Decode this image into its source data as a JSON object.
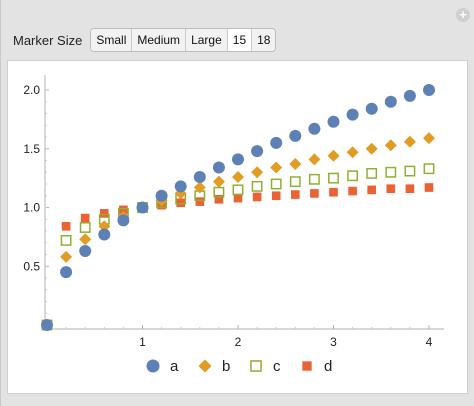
{
  "controls": {
    "label": "Marker Size",
    "options": [
      "Small",
      "Medium",
      "Large",
      "15",
      "18"
    ],
    "selected": "15"
  },
  "chart_data": {
    "type": "scatter",
    "title": "",
    "xlabel": "",
    "ylabel": "",
    "xlim": [
      0,
      4.1
    ],
    "ylim": [
      0,
      2.1
    ],
    "x_ticks": [
      "1",
      "2",
      "3",
      "4"
    ],
    "y_ticks": [
      "0.5",
      "1.0",
      "1.5",
      "2.0"
    ],
    "legend_position": "bottom",
    "series": [
      {
        "name": "a",
        "marker": "circle",
        "color": "#5e81b5",
        "x": [
          0,
          0.2,
          0.4,
          0.6,
          0.8,
          1.0,
          1.2,
          1.4,
          1.6,
          1.8,
          2.0,
          2.2,
          2.4,
          2.6,
          2.8,
          3.0,
          3.2,
          3.4,
          3.6,
          3.8,
          4.0
        ],
        "y": [
          0,
          0.45,
          0.63,
          0.77,
          0.89,
          1.0,
          1.1,
          1.18,
          1.26,
          1.34,
          1.41,
          1.48,
          1.55,
          1.61,
          1.67,
          1.73,
          1.79,
          1.84,
          1.9,
          1.95,
          2.0
        ]
      },
      {
        "name": "b",
        "marker": "diamond",
        "color": "#e19c24",
        "x": [
          0,
          0.2,
          0.4,
          0.6,
          0.8,
          1.0,
          1.2,
          1.4,
          1.6,
          1.8,
          2.0,
          2.2,
          2.4,
          2.6,
          2.8,
          3.0,
          3.2,
          3.4,
          3.6,
          3.8,
          4.0
        ],
        "y": [
          0,
          0.58,
          0.73,
          0.84,
          0.92,
          1.0,
          1.06,
          1.12,
          1.17,
          1.22,
          1.26,
          1.3,
          1.34,
          1.37,
          1.41,
          1.44,
          1.47,
          1.5,
          1.53,
          1.56,
          1.59
        ]
      },
      {
        "name": "c",
        "marker": "open-square",
        "color": "#8fb032",
        "x": [
          0,
          0.2,
          0.4,
          0.6,
          0.8,
          1.0,
          1.2,
          1.4,
          1.6,
          1.8,
          2.0,
          2.2,
          2.4,
          2.6,
          2.8,
          3.0,
          3.2,
          3.4,
          3.6,
          3.8,
          4.0
        ],
        "y": [
          0,
          0.72,
          0.83,
          0.9,
          0.95,
          1.0,
          1.04,
          1.07,
          1.1,
          1.13,
          1.15,
          1.18,
          1.2,
          1.22,
          1.24,
          1.25,
          1.27,
          1.29,
          1.3,
          1.31,
          1.33
        ]
      },
      {
        "name": "d",
        "marker": "square",
        "color": "#eb6235",
        "x": [
          0,
          0.2,
          0.4,
          0.6,
          0.8,
          1.0,
          1.2,
          1.4,
          1.6,
          1.8,
          2.0,
          2.2,
          2.4,
          2.6,
          2.8,
          3.0,
          3.2,
          3.4,
          3.6,
          3.8,
          4.0
        ],
        "y": [
          0,
          0.84,
          0.91,
          0.95,
          0.98,
          1.0,
          1.02,
          1.04,
          1.05,
          1.07,
          1.08,
          1.09,
          1.1,
          1.11,
          1.12,
          1.13,
          1.14,
          1.15,
          1.16,
          1.16,
          1.17
        ]
      }
    ]
  }
}
